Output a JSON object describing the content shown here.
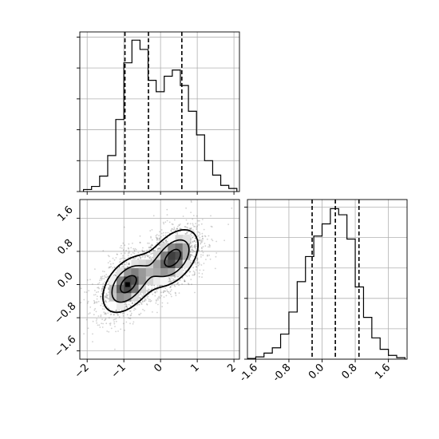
{
  "chart_data": [
    {
      "type": "histogram",
      "variable": "x",
      "bins": [
        {
          "x0": -2.1,
          "x1": -1.88,
          "count": 2
        },
        {
          "x0": -1.88,
          "x1": -1.66,
          "count": 5
        },
        {
          "x0": -1.66,
          "x1": -1.44,
          "count": 15
        },
        {
          "x0": -1.44,
          "x1": -1.22,
          "count": 35
        },
        {
          "x0": -1.22,
          "x1": -1.0,
          "count": 70
        },
        {
          "x0": -1.0,
          "x1": -0.78,
          "count": 125
        },
        {
          "x0": -0.78,
          "x1": -0.56,
          "count": 147
        },
        {
          "x0": -0.56,
          "x1": -0.34,
          "count": 138
        },
        {
          "x0": -0.34,
          "x1": -0.12,
          "count": 108
        },
        {
          "x0": -0.12,
          "x1": 0.1,
          "count": 97
        },
        {
          "x0": 0.1,
          "x1": 0.32,
          "count": 112
        },
        {
          "x0": 0.32,
          "x1": 0.54,
          "count": 118
        },
        {
          "x0": 0.54,
          "x1": 0.76,
          "count": 103
        },
        {
          "x0": 0.76,
          "x1": 0.98,
          "count": 78
        },
        {
          "x0": 0.98,
          "x1": 1.2,
          "count": 55
        },
        {
          "x0": 1.2,
          "x1": 1.42,
          "count": 30
        },
        {
          "x0": 1.42,
          "x1": 1.64,
          "count": 16
        },
        {
          "x0": 1.64,
          "x1": 1.86,
          "count": 6
        },
        {
          "x0": 1.86,
          "x1": 2.08,
          "count": 3
        }
      ],
      "quantile_lines": [
        -0.97,
        -0.33,
        0.58
      ],
      "xlim": [
        -2.2,
        2.15
      ],
      "ylim": [
        0,
        155
      ],
      "grid": true
    },
    {
      "type": "histogram",
      "variable": "y",
      "bins": [
        {
          "x0": -1.8,
          "x1": -1.6,
          "count": 1
        },
        {
          "x0": -1.6,
          "x1": -1.4,
          "count": 3
        },
        {
          "x0": -1.4,
          "x1": -1.2,
          "count": 8
        },
        {
          "x0": -1.2,
          "x1": -1.0,
          "count": 15
        },
        {
          "x0": -1.0,
          "x1": -0.8,
          "count": 33
        },
        {
          "x0": -0.8,
          "x1": -0.6,
          "count": 62
        },
        {
          "x0": -0.6,
          "x1": -0.4,
          "count": 102
        },
        {
          "x0": -0.4,
          "x1": -0.2,
          "count": 135
        },
        {
          "x0": -0.2,
          "x1": 0.0,
          "count": 162
        },
        {
          "x0": 0.0,
          "x1": 0.2,
          "count": 178
        },
        {
          "x0": 0.2,
          "x1": 0.4,
          "count": 198
        },
        {
          "x0": 0.4,
          "x1": 0.6,
          "count": 190
        },
        {
          "x0": 0.6,
          "x1": 0.8,
          "count": 158
        },
        {
          "x0": 0.8,
          "x1": 1.0,
          "count": 95
        },
        {
          "x0": 1.0,
          "x1": 1.2,
          "count": 55
        },
        {
          "x0": 1.2,
          "x1": 1.4,
          "count": 28
        },
        {
          "x0": 1.4,
          "x1": 1.6,
          "count": 13
        },
        {
          "x0": 1.6,
          "x1": 1.8,
          "count": 5
        },
        {
          "x0": 1.8,
          "x1": 2.0,
          "count": 2
        }
      ],
      "quantile_lines": [
        -0.24,
        0.32,
        0.89
      ],
      "xlim": [
        -1.8,
        2.05
      ],
      "ylim": [
        0,
        210
      ],
      "xticks": [
        "-1.6",
        "-0.8",
        "0.0",
        "0.8",
        "1.6"
      ],
      "xtick_values": [
        -1.6,
        -0.8,
        0.0,
        0.8,
        1.6
      ],
      "grid": true
    },
    {
      "type": "2d-histogram-contour",
      "variables": [
        "x",
        "y"
      ],
      "xlim": [
        -2.2,
        2.15
      ],
      "ylim": [
        -1.8,
        2.05
      ],
      "xticks": [
        "−2",
        "−1",
        "0",
        "1",
        "2"
      ],
      "xtick_values": [
        -2,
        -1,
        0,
        1,
        2
      ],
      "yticks": [
        "−1.6",
        "−0.8",
        "0.0",
        "0.8",
        "1.6"
      ],
      "ytick_values": [
        -1.6,
        -0.8,
        0.0,
        0.8,
        1.6
      ],
      "modes": [
        {
          "x": -0.9,
          "y": 0.0
        },
        {
          "x": 0.35,
          "y": 0.65
        }
      ],
      "contour_levels": 4,
      "grid": true
    }
  ]
}
